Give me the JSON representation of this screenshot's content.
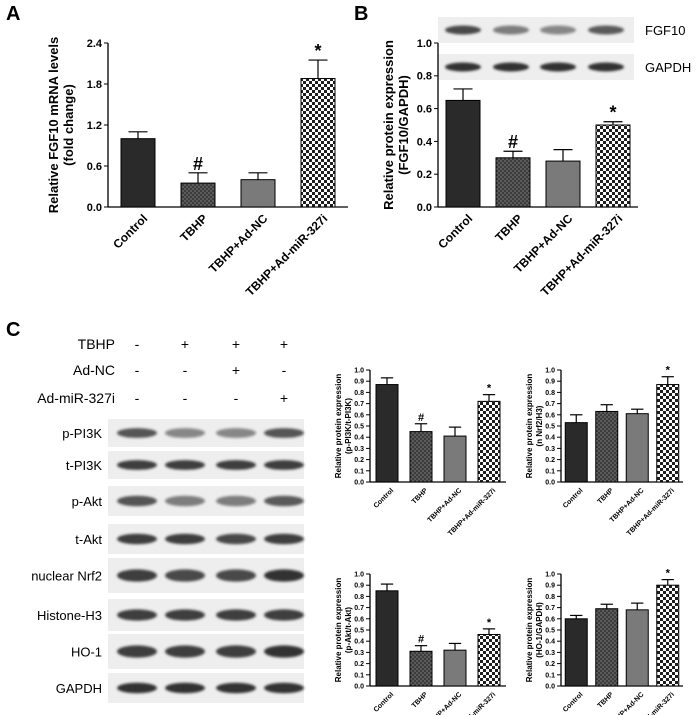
{
  "panels": {
    "a": "A",
    "b": "B",
    "c": "C"
  },
  "colors": {
    "control": "#2a2a2a",
    "tbhp": "#4a4a4a",
    "adnc": "#7a7a7a",
    "mir": "#ffffff",
    "blot_bg": "#eeeeee",
    "band": "#1f1f1f"
  },
  "blots": {
    "b": [
      {
        "name": "FGF10",
        "intensity": [
          0.8,
          0.55,
          0.5,
          0.7
        ]
      },
      {
        "name": "GAPDH",
        "intensity": [
          0.9,
          0.9,
          0.9,
          0.9
        ]
      }
    ],
    "c_treatments": [
      {
        "name": "TBHP",
        "signs": [
          "-",
          "+",
          "+",
          "+"
        ]
      },
      {
        "name": "Ad-NC",
        "signs": [
          "-",
          "-",
          "+",
          "-"
        ]
      },
      {
        "name": "Ad-miR-327i",
        "signs": [
          "-",
          "-",
          "-",
          "+"
        ]
      }
    ],
    "c": [
      {
        "name": "p-PI3K",
        "intensity": [
          0.75,
          0.5,
          0.5,
          0.75
        ]
      },
      {
        "name": "t-PI3K",
        "intensity": [
          0.85,
          0.85,
          0.85,
          0.85
        ]
      },
      {
        "name": "p-Akt",
        "intensity": [
          0.75,
          0.55,
          0.55,
          0.7
        ]
      },
      {
        "name": "t-Akt",
        "intensity": [
          0.85,
          0.85,
          0.8,
          0.85
        ]
      },
      {
        "name": "nuclear Nrf2",
        "intensity": [
          0.85,
          0.8,
          0.8,
          0.9
        ]
      },
      {
        "name": "Histone-H3",
        "intensity": [
          0.85,
          0.85,
          0.85,
          0.85
        ]
      },
      {
        "name": "HO-1",
        "intensity": [
          0.85,
          0.85,
          0.85,
          0.9
        ]
      },
      {
        "name": "GAPDH",
        "intensity": [
          0.9,
          0.9,
          0.9,
          0.9
        ]
      }
    ]
  },
  "chart_data": [
    {
      "id": "A",
      "type": "bar",
      "categories": [
        "Control",
        "TBHP",
        "TBHP+Ad-NC",
        "TBHP+Ad-miR-327i"
      ],
      "values": [
        1.0,
        0.35,
        0.4,
        1.88
      ],
      "errors": [
        0.1,
        0.15,
        0.1,
        0.27
      ],
      "significance": [
        "",
        "#",
        "",
        "*"
      ],
      "ylabel": "Relative FGF10 mRNA levels\n(fold change)",
      "ylim": [
        0,
        2.4
      ],
      "yticks": [
        0.0,
        0.6,
        1.2,
        1.8,
        2.4
      ],
      "grid": false
    },
    {
      "id": "B",
      "type": "bar",
      "categories": [
        "Control",
        "TBHP",
        "TBHP+Ad-NC",
        "TBHP+Ad-miR-327i"
      ],
      "values": [
        0.65,
        0.3,
        0.28,
        0.5
      ],
      "errors": [
        0.07,
        0.04,
        0.07,
        0.02
      ],
      "significance": [
        "",
        "#",
        "",
        "*"
      ],
      "ylabel": "Relative protein expression\n(FGF10/GAPDH)",
      "ylim": [
        0,
        1.0
      ],
      "yticks": [
        0.0,
        0.2,
        0.4,
        0.6,
        0.8,
        1.0
      ],
      "grid": false
    },
    {
      "id": "C1",
      "type": "bar",
      "categories": [
        "Control",
        "TBHP",
        "TBHP+Ad-NC",
        "TBHP+Ad-miR-327i"
      ],
      "values": [
        0.87,
        0.45,
        0.41,
        0.72
      ],
      "errors": [
        0.06,
        0.07,
        0.08,
        0.06
      ],
      "significance": [
        "",
        "#",
        "",
        "*"
      ],
      "ylabel": "Relative protein expression\n(p-PI3K/t-PI3K)",
      "ylim": [
        0,
        1.0
      ],
      "yticks": [
        0.0,
        0.1,
        0.2,
        0.3,
        0.4,
        0.5,
        0.6,
        0.7,
        0.8,
        0.9,
        1.0
      ],
      "grid": false
    },
    {
      "id": "C2",
      "type": "bar",
      "categories": [
        "Control",
        "TBHP",
        "TBHP+Ad-NC",
        "TBHP+Ad-miR-327i"
      ],
      "values": [
        0.53,
        0.63,
        0.61,
        0.87
      ],
      "errors": [
        0.07,
        0.06,
        0.04,
        0.07
      ],
      "significance": [
        "",
        "",
        "",
        "*"
      ],
      "ylabel": "Relative protein expression\n(n Nrf2/H3)",
      "ylim": [
        0,
        1.0
      ],
      "yticks": [
        0.0,
        0.1,
        0.2,
        0.3,
        0.4,
        0.5,
        0.6,
        0.7,
        0.8,
        0.9,
        1.0
      ],
      "grid": false
    },
    {
      "id": "C3",
      "type": "bar",
      "categories": [
        "Control",
        "TBHP",
        "TBHP+Ad-NC",
        "TBHP+Ad-miR-327i"
      ],
      "values": [
        0.85,
        0.31,
        0.32,
        0.46
      ],
      "errors": [
        0.06,
        0.05,
        0.06,
        0.05
      ],
      "significance": [
        "",
        "#",
        "",
        "*"
      ],
      "ylabel": "Relative protein expression\n(p-Akt/t-Akt)",
      "ylim": [
        0,
        1.0
      ],
      "yticks": [
        0.0,
        0.1,
        0.2,
        0.3,
        0.4,
        0.5,
        0.6,
        0.7,
        0.8,
        0.9,
        1.0
      ],
      "grid": false
    },
    {
      "id": "C4",
      "type": "bar",
      "categories": [
        "Control",
        "TBHP",
        "TBHP+Ad-NC",
        "TBHP+Ad-miR-327i"
      ],
      "values": [
        0.6,
        0.69,
        0.68,
        0.9
      ],
      "errors": [
        0.03,
        0.04,
        0.06,
        0.05
      ],
      "significance": [
        "",
        "",
        "",
        "*"
      ],
      "ylabel": "Relative protein expression\n(HO-1/GAPDH)",
      "ylim": [
        0,
        1.0
      ],
      "yticks": [
        0.0,
        0.1,
        0.2,
        0.3,
        0.4,
        0.5,
        0.6,
        0.7,
        0.8,
        0.9,
        1.0
      ],
      "grid": false
    }
  ]
}
